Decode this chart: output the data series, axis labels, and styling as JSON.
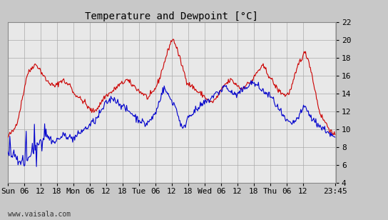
{
  "title": "Temperature and Dewpoint [°C]",
  "watermark": "www.vaisala.com",
  "x_tick_labels": [
    "Sun",
    "06",
    "12",
    "18",
    "Mon",
    "06",
    "12",
    "18",
    "Tue",
    "06",
    "12",
    "18",
    "Wed",
    "06",
    "12",
    "18",
    "Thu",
    "06",
    "12",
    "23:45"
  ],
  "ylim": [
    4,
    22
  ],
  "yticks": [
    4,
    6,
    8,
    10,
    12,
    14,
    16,
    18,
    20,
    22
  ],
  "temp_color": "#cc0000",
  "dewp_color": "#0000cc",
  "bg_color": "#c8c8c8",
  "plot_bg_color": "#e8e8e8",
  "grid_color": "#aaaaaa",
  "title_fontsize": 10,
  "tick_fontsize": 8,
  "line_width": 0.8
}
